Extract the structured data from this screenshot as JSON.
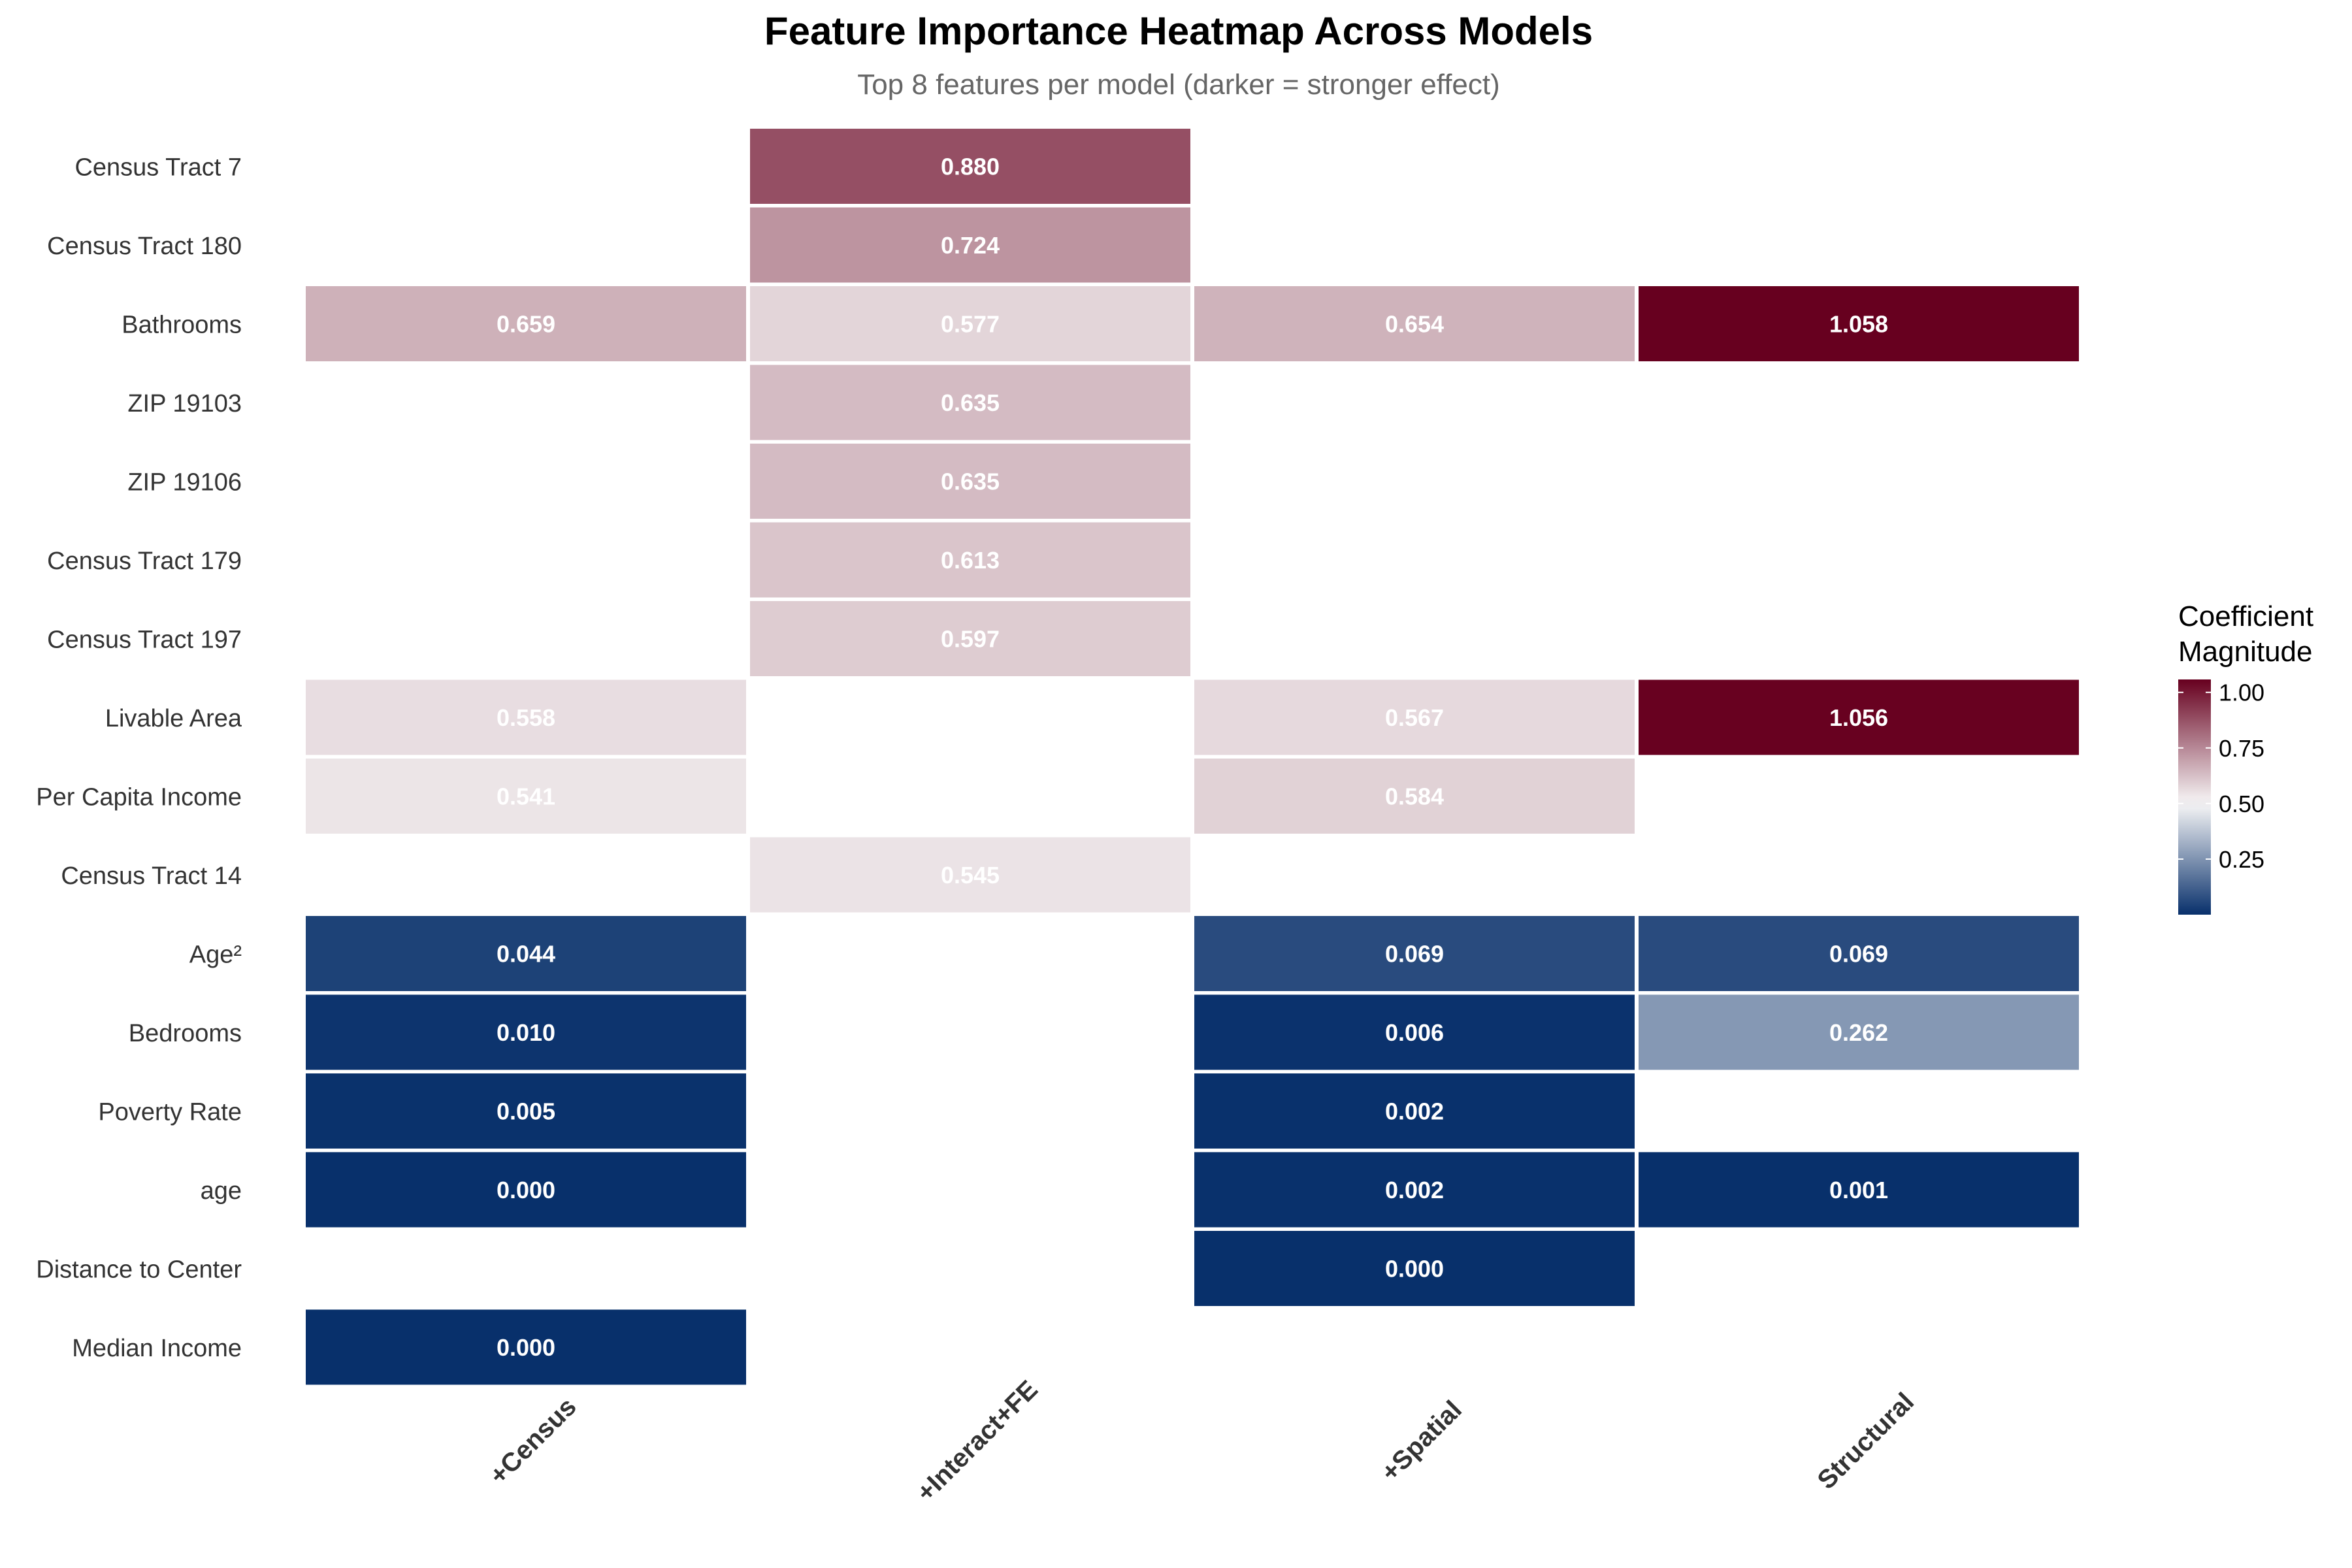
{
  "chart_data": {
    "type": "heatmap",
    "title": "Feature Importance Heatmap Across Models",
    "subtitle": "Top 8 features per model (darker = stronger effect)",
    "columns": [
      "+Census",
      "+Interact+FE",
      "+Spatial",
      "Structural"
    ],
    "rows": [
      "Census Tract 7",
      "Census Tract 180",
      "Bathrooms",
      "ZIP 19103",
      "ZIP 19106",
      "Census Tract 179",
      "Census Tract 197",
      "Livable Area",
      "Per Capita Income",
      "Census Tract 14",
      "Age²",
      "Bedrooms",
      "Poverty Rate",
      "age",
      "Distance to Center",
      "Median Income"
    ],
    "values": [
      [
        null,
        0.88,
        null,
        null
      ],
      [
        null,
        0.724,
        null,
        null
      ],
      [
        0.659,
        0.577,
        0.654,
        1.058
      ],
      [
        null,
        0.635,
        null,
        null
      ],
      [
        null,
        0.635,
        null,
        null
      ],
      [
        null,
        0.613,
        null,
        null
      ],
      [
        null,
        0.597,
        null,
        null
      ],
      [
        0.558,
        null,
        0.567,
        1.056
      ],
      [
        0.541,
        null,
        0.584,
        null
      ],
      [
        null,
        0.545,
        null,
        null
      ],
      [
        0.044,
        null,
        0.069,
        0.069
      ],
      [
        0.01,
        null,
        0.006,
        0.262
      ],
      [
        0.005,
        null,
        0.002,
        null
      ],
      [
        0.0,
        null,
        0.002,
        0.001
      ],
      [
        null,
        null,
        0.0,
        null
      ],
      [
        0.0,
        null,
        null,
        null
      ]
    ],
    "legend": {
      "title_line1": "Coefficient",
      "title_line2": "Magnitude",
      "ticks": [
        0.25,
        0.5,
        0.75,
        1.0
      ],
      "range": [
        0,
        1.058
      ],
      "colors": {
        "low": "#08306b",
        "mid": "#f7f7f7",
        "high": "#67001f"
      },
      "midpoint": 0.5
    }
  }
}
